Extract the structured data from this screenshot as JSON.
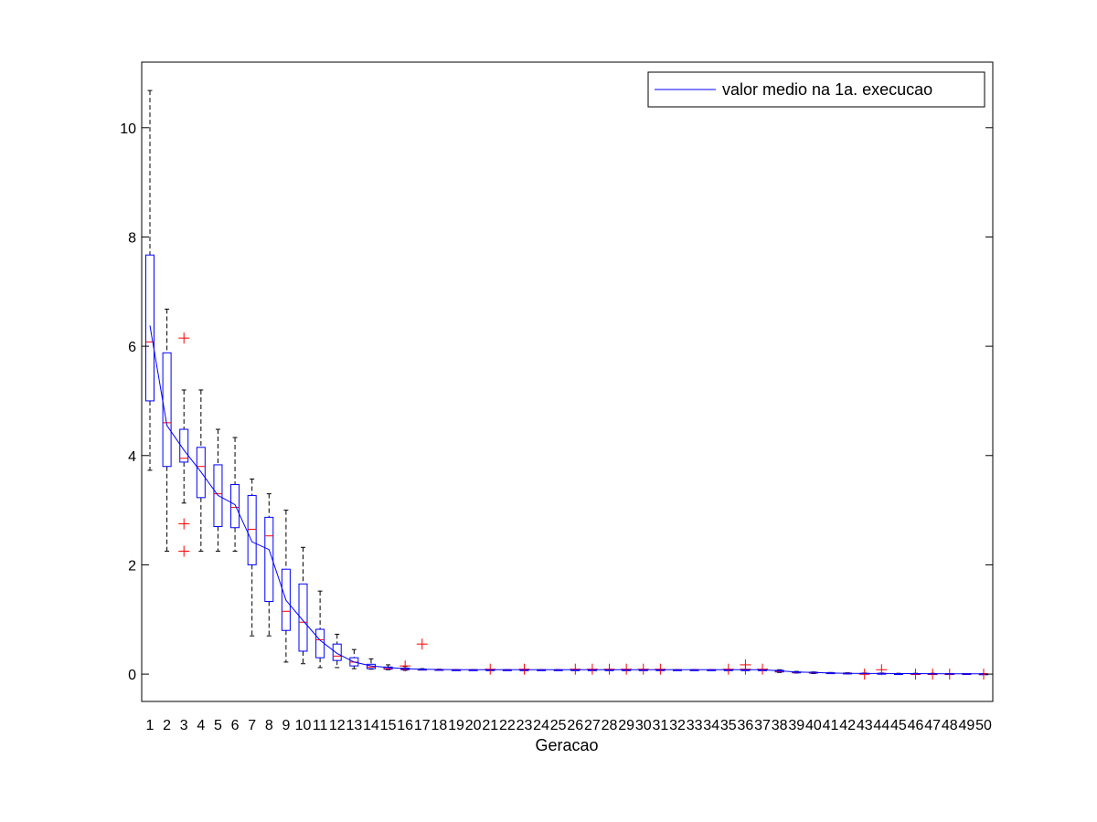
{
  "chart_data": {
    "type": "boxplot",
    "title": "",
    "xlabel": "Geracao",
    "ylabel": "",
    "ylim": [
      -0.5,
      11.2
    ],
    "yticks": [
      0,
      2,
      4,
      6,
      8,
      10
    ],
    "grid": false,
    "legend": {
      "position": "top-right",
      "entries": [
        "valor medio na 1a. execucao"
      ]
    },
    "colors": {
      "box": "#0000ff",
      "median": "#ff0000",
      "whisker": "#000000",
      "outlier": "#ff0000",
      "mean_line": "#0000ff"
    },
    "categories": [
      "1",
      "2",
      "3",
      "4",
      "5",
      "6",
      "7",
      "8",
      "9",
      "10",
      "11",
      "12",
      "13",
      "14",
      "15",
      "16",
      "17",
      "18",
      "19",
      "20",
      "21",
      "22",
      "23",
      "24",
      "25",
      "26",
      "27",
      "28",
      "29",
      "30",
      "31",
      "32",
      "33",
      "34",
      "35",
      "36",
      "37",
      "38",
      "39",
      "40",
      "41",
      "42",
      "43",
      "44",
      "45",
      "46",
      "47",
      "48",
      "49",
      "50"
    ],
    "boxes": [
      {
        "q1": 5.0,
        "median": 6.08,
        "q3": 7.67,
        "lower": 3.73,
        "upper": 10.68,
        "outliers": []
      },
      {
        "q1": 3.8,
        "median": 4.6,
        "q3": 5.88,
        "lower": 2.25,
        "upper": 6.68,
        "outliers": []
      },
      {
        "q1": 3.88,
        "median": 3.95,
        "q3": 4.48,
        "lower": 3.13,
        "upper": 5.2,
        "outliers": [
          6.15,
          2.75,
          2.25
        ]
      },
      {
        "q1": 3.23,
        "median": 3.8,
        "q3": 4.15,
        "lower": 2.25,
        "upper": 5.2,
        "outliers": []
      },
      {
        "q1": 2.7,
        "median": 3.3,
        "q3": 3.83,
        "lower": 2.25,
        "upper": 4.48,
        "outliers": []
      },
      {
        "q1": 2.68,
        "median": 3.05,
        "q3": 3.47,
        "lower": 2.25,
        "upper": 4.33,
        "outliers": []
      },
      {
        "q1": 2.0,
        "median": 2.65,
        "q3": 3.27,
        "lower": 0.7,
        "upper": 3.57,
        "outliers": []
      },
      {
        "q1": 1.33,
        "median": 2.53,
        "q3": 2.87,
        "lower": 0.7,
        "upper": 3.3,
        "outliers": []
      },
      {
        "q1": 0.8,
        "median": 1.15,
        "q3": 1.92,
        "lower": 0.22,
        "upper": 3.0,
        "outliers": []
      },
      {
        "q1": 0.42,
        "median": 0.95,
        "q3": 1.65,
        "lower": 0.19,
        "upper": 2.32,
        "outliers": []
      },
      {
        "q1": 0.3,
        "median": 0.63,
        "q3": 0.82,
        "lower": 0.12,
        "upper": 1.52,
        "outliers": []
      },
      {
        "q1": 0.25,
        "median": 0.33,
        "q3": 0.55,
        "lower": 0.12,
        "upper": 0.73,
        "outliers": []
      },
      {
        "q1": 0.15,
        "median": 0.22,
        "q3": 0.3,
        "lower": 0.1,
        "upper": 0.45,
        "outliers": []
      },
      {
        "q1": 0.1,
        "median": 0.13,
        "q3": 0.18,
        "lower": 0.09,
        "upper": 0.28,
        "outliers": []
      },
      {
        "q1": 0.09,
        "median": 0.1,
        "q3": 0.13,
        "lower": 0.08,
        "upper": 0.17,
        "outliers": []
      },
      {
        "q1": 0.08,
        "median": 0.09,
        "q3": 0.11,
        "lower": 0.07,
        "upper": 0.14,
        "outliers": [
          0.15
        ]
      },
      {
        "q1": 0.08,
        "median": 0.085,
        "q3": 0.09,
        "lower": 0.08,
        "upper": 0.1,
        "outliers": [
          0.55
        ]
      },
      {
        "q1": 0.08,
        "median": 0.08,
        "q3": 0.085,
        "lower": 0.08,
        "upper": 0.09,
        "outliers": []
      },
      {
        "q1": 0.08,
        "median": 0.08,
        "q3": 0.08,
        "lower": 0.08,
        "upper": 0.08,
        "outliers": []
      },
      {
        "q1": 0.08,
        "median": 0.08,
        "q3": 0.08,
        "lower": 0.08,
        "upper": 0.08,
        "outliers": []
      },
      {
        "q1": 0.08,
        "median": 0.08,
        "q3": 0.08,
        "lower": 0.08,
        "upper": 0.08,
        "outliers": [
          0.09
        ]
      },
      {
        "q1": 0.08,
        "median": 0.08,
        "q3": 0.08,
        "lower": 0.08,
        "upper": 0.08,
        "outliers": []
      },
      {
        "q1": 0.08,
        "median": 0.08,
        "q3": 0.08,
        "lower": 0.08,
        "upper": 0.08,
        "outliers": [
          0.09
        ]
      },
      {
        "q1": 0.08,
        "median": 0.08,
        "q3": 0.08,
        "lower": 0.08,
        "upper": 0.08,
        "outliers": []
      },
      {
        "q1": 0.08,
        "median": 0.08,
        "q3": 0.08,
        "lower": 0.08,
        "upper": 0.08,
        "outliers": []
      },
      {
        "q1": 0.08,
        "median": 0.08,
        "q3": 0.08,
        "lower": 0.08,
        "upper": 0.08,
        "outliers": [
          0.09
        ]
      },
      {
        "q1": 0.08,
        "median": 0.08,
        "q3": 0.08,
        "lower": 0.08,
        "upper": 0.08,
        "outliers": [
          0.09
        ]
      },
      {
        "q1": 0.08,
        "median": 0.08,
        "q3": 0.08,
        "lower": 0.08,
        "upper": 0.08,
        "outliers": [
          0.09
        ]
      },
      {
        "q1": 0.08,
        "median": 0.08,
        "q3": 0.08,
        "lower": 0.08,
        "upper": 0.08,
        "outliers": [
          0.09
        ]
      },
      {
        "q1": 0.08,
        "median": 0.08,
        "q3": 0.08,
        "lower": 0.08,
        "upper": 0.08,
        "outliers": [
          0.09
        ]
      },
      {
        "q1": 0.08,
        "median": 0.08,
        "q3": 0.08,
        "lower": 0.08,
        "upper": 0.08,
        "outliers": [
          0.09
        ]
      },
      {
        "q1": 0.08,
        "median": 0.08,
        "q3": 0.08,
        "lower": 0.08,
        "upper": 0.08,
        "outliers": []
      },
      {
        "q1": 0.08,
        "median": 0.08,
        "q3": 0.08,
        "lower": 0.08,
        "upper": 0.08,
        "outliers": []
      },
      {
        "q1": 0.08,
        "median": 0.08,
        "q3": 0.08,
        "lower": 0.08,
        "upper": 0.08,
        "outliers": []
      },
      {
        "q1": 0.08,
        "median": 0.08,
        "q3": 0.08,
        "lower": 0.08,
        "upper": 0.08,
        "outliers": [
          0.09
        ]
      },
      {
        "q1": 0.08,
        "median": 0.08,
        "q3": 0.08,
        "lower": 0.08,
        "upper": 0.08,
        "outliers": [
          0.17,
          0.09
        ]
      },
      {
        "q1": 0.08,
        "median": 0.08,
        "q3": 0.08,
        "lower": 0.08,
        "upper": 0.08,
        "outliers": [
          0.09
        ]
      },
      {
        "q1": 0.04,
        "median": 0.05,
        "q3": 0.07,
        "lower": 0.03,
        "upper": 0.08,
        "outliers": []
      },
      {
        "q1": 0.03,
        "median": 0.035,
        "q3": 0.04,
        "lower": 0.02,
        "upper": 0.05,
        "outliers": []
      },
      {
        "q1": 0.02,
        "median": 0.025,
        "q3": 0.035,
        "lower": 0.01,
        "upper": 0.04,
        "outliers": []
      },
      {
        "q1": 0.015,
        "median": 0.02,
        "q3": 0.025,
        "lower": 0.01,
        "upper": 0.03,
        "outliers": []
      },
      {
        "q1": 0.01,
        "median": 0.015,
        "q3": 0.02,
        "lower": 0.005,
        "upper": 0.025,
        "outliers": []
      },
      {
        "q1": 0.01,
        "median": 0.01,
        "q3": 0.015,
        "lower": 0.005,
        "upper": 0.02,
        "outliers": [
          0.0
        ]
      },
      {
        "q1": 0.01,
        "median": 0.01,
        "q3": 0.015,
        "lower": 0.005,
        "upper": 0.02,
        "outliers": [
          0.08
        ]
      },
      {
        "q1": 0.005,
        "median": 0.01,
        "q3": 0.01,
        "lower": 0.0,
        "upper": 0.015,
        "outliers": []
      },
      {
        "q1": 0.005,
        "median": 0.01,
        "q3": 0.01,
        "lower": 0.0,
        "upper": 0.015,
        "outliers": [
          0.0
        ]
      },
      {
        "q1": 0.005,
        "median": 0.01,
        "q3": 0.01,
        "lower": 0.0,
        "upper": 0.015,
        "outliers": [
          0.0
        ]
      },
      {
        "q1": 0.005,
        "median": 0.005,
        "q3": 0.01,
        "lower": 0.0,
        "upper": 0.01,
        "outliers": [
          0.0
        ]
      },
      {
        "q1": 0.005,
        "median": 0.005,
        "q3": 0.01,
        "lower": 0.0,
        "upper": 0.01,
        "outliers": []
      },
      {
        "q1": 0.0,
        "median": 0.005,
        "q3": 0.005,
        "lower": 0.0,
        "upper": 0.01,
        "outliers": [
          0.0
        ]
      }
    ],
    "series": [
      {
        "name": "valor medio na 1a. execucao",
        "values": [
          6.38,
          4.55,
          4.1,
          3.7,
          3.27,
          3.1,
          2.42,
          2.28,
          1.35,
          0.98,
          0.62,
          0.38,
          0.22,
          0.15,
          0.12,
          0.1,
          0.09,
          0.085,
          0.08,
          0.08,
          0.08,
          0.08,
          0.08,
          0.08,
          0.08,
          0.08,
          0.08,
          0.08,
          0.08,
          0.08,
          0.08,
          0.08,
          0.08,
          0.08,
          0.08,
          0.08,
          0.08,
          0.06,
          0.04,
          0.03,
          0.02,
          0.015,
          0.012,
          0.012,
          0.01,
          0.01,
          0.008,
          0.006,
          0.005,
          0.004
        ]
      }
    ]
  }
}
